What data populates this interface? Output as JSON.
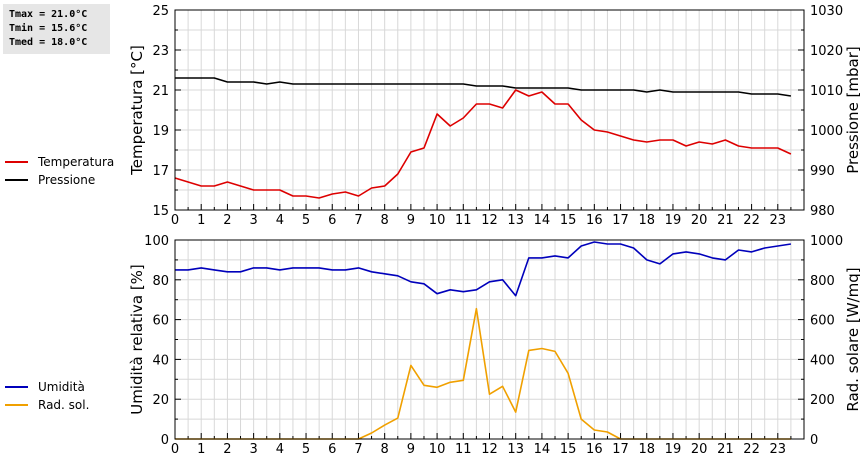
{
  "stats": {
    "tmax": "Tmax = 21.0°C",
    "tmin": "Tmin = 15.6°C",
    "tmed": "Tmed = 18.0°C"
  },
  "colors": {
    "temperature": "#dd0000",
    "pressure": "#000000",
    "humidity": "#0000bb",
    "radiation": "#f0a000",
    "grid": "#d8d8d8"
  },
  "chart_data": [
    {
      "type": "line",
      "x": [
        0,
        0.5,
        1,
        1.5,
        2,
        2.5,
        3,
        3.5,
        4,
        4.5,
        5,
        5.5,
        6,
        6.5,
        7,
        7.5,
        8,
        8.5,
        9,
        9.5,
        10,
        10.5,
        11,
        11.5,
        12,
        12.5,
        13,
        13.5,
        14,
        14.5,
        15,
        15.5,
        16,
        16.5,
        17,
        17.5,
        18,
        18.5,
        19,
        19.5,
        20,
        20.5,
        21,
        21.5,
        22,
        22.5,
        23,
        23.5
      ],
      "xticks": [
        "0",
        "1",
        "2",
        "3",
        "4",
        "5",
        "6",
        "7",
        "8",
        "9",
        "10",
        "11",
        "12",
        "13",
        "14",
        "15",
        "16",
        "17",
        "18",
        "19",
        "20",
        "21",
        "22",
        "23"
      ],
      "xlim": [
        0,
        24
      ],
      "ylabel": "Temperatura [°C]",
      "ylim": [
        15,
        25
      ],
      "yticks": [
        "15",
        "17",
        "19",
        "21",
        "23",
        "25"
      ],
      "y2label": "Pressione [mbar]",
      "y2lim": [
        980,
        1030
      ],
      "y2ticks": [
        "980",
        "990",
        "1000",
        "1010",
        "1020",
        "1030"
      ],
      "grid": true,
      "legend": "left",
      "series": [
        {
          "name": "Temperatura",
          "axis": "left",
          "values": [
            16.6,
            16.4,
            16.2,
            16.2,
            16.4,
            16.2,
            16.0,
            16.0,
            16.0,
            15.7,
            15.7,
            15.6,
            15.8,
            15.9,
            15.7,
            16.1,
            16.2,
            16.8,
            17.9,
            18.1,
            19.8,
            19.2,
            19.6,
            20.3,
            20.3,
            20.1,
            21.0,
            20.7,
            20.9,
            20.3,
            20.3,
            19.5,
            19.0,
            18.9,
            18.7,
            18.5,
            18.4,
            18.5,
            18.5,
            18.2,
            18.4,
            18.3,
            18.5,
            18.2,
            18.1,
            18.1,
            18.1,
            17.8
          ]
        },
        {
          "name": "Pressione",
          "axis": "right",
          "values": [
            1013,
            1013,
            1013,
            1013,
            1012,
            1012,
            1012,
            1011.5,
            1012,
            1011.5,
            1011.5,
            1011.5,
            1011.5,
            1011.5,
            1011.5,
            1011.5,
            1011.5,
            1011.5,
            1011.5,
            1011.5,
            1011.5,
            1011.5,
            1011.5,
            1011,
            1011,
            1011,
            1010.5,
            1010.5,
            1010.5,
            1010.5,
            1010.5,
            1010,
            1010,
            1010,
            1010,
            1010,
            1009.5,
            1010,
            1009.5,
            1009.5,
            1009.5,
            1009.5,
            1009.5,
            1009.5,
            1009,
            1009,
            1009,
            1008.5
          ]
        }
      ]
    },
    {
      "type": "line",
      "x": [
        0,
        0.5,
        1,
        1.5,
        2,
        2.5,
        3,
        3.5,
        4,
        4.5,
        5,
        5.5,
        6,
        6.5,
        7,
        7.5,
        8,
        8.5,
        9,
        9.5,
        10,
        10.5,
        11,
        11.5,
        12,
        12.5,
        13,
        13.5,
        14,
        14.5,
        15,
        15.5,
        16,
        16.5,
        17,
        17.5,
        18,
        18.5,
        19,
        19.5,
        20,
        20.5,
        21,
        21.5,
        22,
        22.5,
        23,
        23.5
      ],
      "xticks": [
        "0",
        "1",
        "2",
        "3",
        "4",
        "5",
        "6",
        "7",
        "8",
        "9",
        "10",
        "11",
        "12",
        "13",
        "14",
        "15",
        "16",
        "17",
        "18",
        "19",
        "20",
        "21",
        "22",
        "23"
      ],
      "xlim": [
        0,
        24
      ],
      "ylabel": "Umidità relativa [%]",
      "ylim": [
        0,
        100
      ],
      "yticks": [
        "0",
        "20",
        "40",
        "60",
        "80",
        "100"
      ],
      "y2label": "Rad. solare [W/mq]",
      "y2lim": [
        0,
        1000
      ],
      "y2ticks": [
        "0",
        "200",
        "400",
        "600",
        "800",
        "1000"
      ],
      "grid": true,
      "legend": "left",
      "series": [
        {
          "name": "Umidità",
          "axis": "left",
          "values": [
            85,
            85,
            86,
            85,
            84,
            84,
            86,
            86,
            85,
            86,
            86,
            86,
            85,
            85,
            86,
            84,
            83,
            82,
            79,
            78,
            73,
            75,
            74,
            75,
            79,
            80,
            72,
            91,
            91,
            92,
            91,
            97,
            99,
            98,
            98,
            96,
            90,
            88,
            93,
            94,
            93,
            91,
            90,
            95,
            94,
            96,
            97,
            98
          ]
        },
        {
          "name": "Rad. sol.",
          "axis": "right",
          "values": [
            0,
            0,
            0,
            0,
            0,
            0,
            0,
            0,
            0,
            0,
            0,
            0,
            0,
            0,
            0,
            30,
            70,
            105,
            370,
            270,
            260,
            285,
            295,
            655,
            225,
            265,
            135,
            445,
            455,
            440,
            330,
            100,
            45,
            35,
            0,
            0,
            0,
            0,
            0,
            0,
            0,
            0,
            0,
            0,
            0,
            0,
            0,
            0
          ]
        }
      ]
    }
  ]
}
